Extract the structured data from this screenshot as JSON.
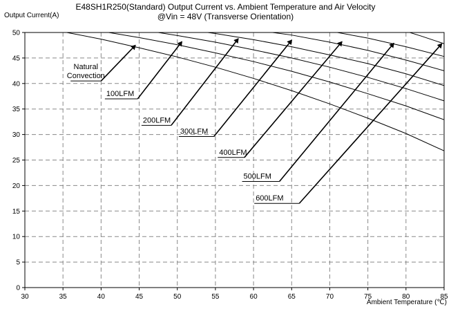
{
  "chart_data": {
    "type": "line",
    "title": "E48SH1R250(Standard)  Output Current vs. Ambient Temperature and Air Velocity",
    "subtitle": "@Vin = 48V (Transverse Orientation)",
    "xlabel": "Ambient Temperature (℃)",
    "ylabel": "Output Current(A)",
    "xlim": [
      30,
      85
    ],
    "ylim": [
      0,
      50
    ],
    "xticks": [
      30,
      35,
      40,
      45,
      50,
      55,
      60,
      65,
      70,
      75,
      80,
      85
    ],
    "yticks": [
      0,
      5,
      10,
      15,
      20,
      25,
      30,
      35,
      40,
      45,
      50
    ],
    "grid": true,
    "grid_style": "dashed",
    "series": [
      {
        "name": "Natural Convection",
        "x": [
          30,
          35.5,
          40,
          45,
          50,
          55,
          60,
          65,
          70,
          75,
          80,
          85
        ],
        "y": [
          50,
          50,
          48.7,
          47.0,
          45.2,
          43.2,
          41.0,
          38.6,
          36.0,
          33.2,
          30.2,
          26.8
        ]
      },
      {
        "name": "100LFM",
        "x": [
          30,
          41,
          45,
          50,
          55,
          60,
          65,
          70,
          75,
          80,
          85
        ],
        "y": [
          50,
          50,
          49.0,
          47.6,
          46.0,
          44.3,
          42.4,
          40.3,
          38.0,
          35.6,
          32.9
        ]
      },
      {
        "name": "200LFM",
        "x": [
          30,
          47.5,
          50,
          55,
          60,
          65,
          70,
          75,
          80,
          85
        ],
        "y": [
          50,
          50,
          49.4,
          48.1,
          46.6,
          45.0,
          43.2,
          41.2,
          39.0,
          36.6
        ]
      },
      {
        "name": "300LFM",
        "x": [
          30,
          54,
          55,
          60,
          65,
          70,
          75,
          80,
          85
        ],
        "y": [
          50,
          50,
          49.8,
          48.6,
          47.2,
          45.6,
          43.9,
          41.9,
          39.6
        ]
      },
      {
        "name": "400LFM",
        "x": [
          30,
          62.5,
          65,
          70,
          75,
          80,
          85
        ],
        "y": [
          50,
          50,
          49.5,
          48.1,
          46.5,
          44.6,
          42.5
        ]
      },
      {
        "name": "500LFM",
        "x": [
          30,
          71,
          75,
          80,
          85
        ],
        "y": [
          50,
          50,
          48.9,
          47.2,
          45.3
        ]
      },
      {
        "name": "600LFM",
        "x": [
          30,
          80.5,
          82,
          85
        ],
        "y": [
          50,
          50,
          49.3,
          47.8
        ]
      }
    ],
    "annotations": [
      {
        "text": "Natural Convection",
        "lines": [
          "Natural",
          "Convection"
        ],
        "arrow_from": [
          40,
          40.5
        ],
        "arrow_to": [
          44.5,
          47.5
        ],
        "underline_start": 36
      },
      {
        "text": "100LFM",
        "lines": [
          "100LFM"
        ],
        "arrow_from": [
          44.8,
          37
        ],
        "arrow_to": [
          50.6,
          48.2
        ],
        "underline_start": 40.5
      },
      {
        "text": "200LFM",
        "lines": [
          "200LFM"
        ],
        "arrow_from": [
          49.2,
          31.8
        ],
        "arrow_to": [
          58,
          48.8
        ],
        "underline_start": 45.3
      },
      {
        "text": "300LFM",
        "lines": [
          "300LFM"
        ],
        "arrow_from": [
          54.8,
          29.6
        ],
        "arrow_to": [
          65,
          48.5
        ],
        "underline_start": 50.2
      },
      {
        "text": "400LFM",
        "lines": [
          "400LFM"
        ],
        "arrow_from": [
          58.8,
          25.5
        ],
        "arrow_to": [
          71.6,
          48.2
        ],
        "underline_start": 55.3
      },
      {
        "text": "500LFM",
        "lines": [
          "500LFM"
        ],
        "arrow_from": [
          63.4,
          20.8
        ],
        "arrow_to": [
          78.4,
          47.9
        ],
        "underline_start": 58.5
      },
      {
        "text": "600LFM",
        "lines": [
          "600LFM"
        ],
        "arrow_from": [
          66,
          16.5
        ],
        "arrow_to": [
          84.7,
          47.8
        ],
        "underline_start": 60.1
      }
    ]
  }
}
